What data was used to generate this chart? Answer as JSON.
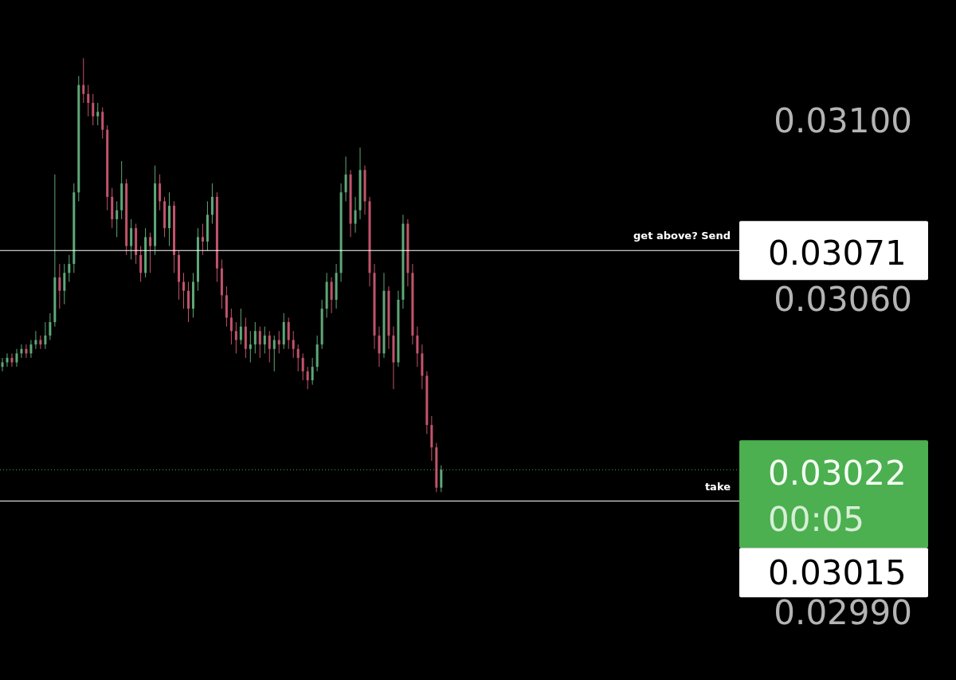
{
  "chart_data": {
    "type": "candlestick",
    "categories": [
      null,
      null,
      null,
      null,
      null,
      null,
      null,
      null,
      null,
      null,
      null,
      null,
      null,
      null,
      null,
      null,
      null,
      null,
      null,
      null,
      null,
      null,
      null,
      null,
      null,
      null,
      null,
      null,
      null,
      null,
      null,
      null,
      null,
      null,
      null,
      null,
      null,
      null,
      null,
      null,
      null,
      null,
      null,
      null,
      null,
      null,
      null,
      null,
      null,
      null,
      null,
      null,
      null,
      null,
      null,
      null,
      null,
      null,
      null,
      null,
      null,
      null,
      null,
      null,
      null,
      null,
      null,
      null,
      null,
      null,
      null,
      null,
      null,
      null,
      null,
      null,
      null,
      null,
      null,
      null,
      null,
      null,
      null,
      null,
      null,
      null,
      null,
      null,
      null,
      null,
      null,
      null,
      null,
      null,
      null,
      null,
      null,
      null,
      null,
      null,
      null,
      null,
      null,
      null,
      null,
      null,
      null,
      null,
      null,
      null,
      null,
      null,
      null,
      null,
      null,
      null,
      null,
      null,
      null,
      null,
      null,
      null,
      null,
      null,
      null,
      null,
      null,
      null,
      null,
      null,
      null,
      null,
      null,
      null,
      null,
      null,
      null,
      null,
      null,
      null,
      null,
      null,
      null,
      null,
      null,
      null,
      null,
      null,
      null,
      null,
      null,
      null,
      null,
      null,
      null
    ],
    "ohlc": [
      [
        0.03045,
        0.03047,
        0.03044,
        0.03046
      ],
      [
        0.03046,
        0.03048,
        0.03045,
        0.03047
      ],
      [
        0.03047,
        0.03048,
        0.03045,
        0.03046
      ],
      [
        0.03046,
        0.03049,
        0.03045,
        0.03048
      ],
      [
        0.03048,
        0.0305,
        0.03047,
        0.03049
      ],
      [
        0.03049,
        0.0305,
        0.03047,
        0.03048
      ],
      [
        0.03048,
        0.03051,
        0.03047,
        0.0305
      ],
      [
        0.0305,
        0.03053,
        0.03049,
        0.03051
      ],
      [
        0.03051,
        0.03052,
        0.03049,
        0.0305
      ],
      [
        0.0305,
        0.03055,
        0.03049,
        0.03052
      ],
      [
        0.03052,
        0.03057,
        0.03051,
        0.03055
      ],
      [
        0.03055,
        0.03088,
        0.03054,
        0.03065
      ],
      [
        0.03065,
        0.03068,
        0.03058,
        0.03062
      ],
      [
        0.03062,
        0.03068,
        0.03059,
        0.03066
      ],
      [
        0.03066,
        0.0307,
        0.03064,
        0.03068
      ],
      [
        0.03068,
        0.03086,
        0.03066,
        0.03084
      ],
      [
        0.03084,
        0.0311,
        0.03082,
        0.03108
      ],
      [
        0.03108,
        0.03114,
        0.03104,
        0.03106
      ],
      [
        0.03106,
        0.03108,
        0.03101,
        0.03104
      ],
      [
        0.03104,
        0.03106,
        0.03099,
        0.03101
      ],
      [
        0.03101,
        0.03104,
        0.03099,
        0.03102
      ],
      [
        0.03102,
        0.03103,
        0.03096,
        0.03098
      ],
      [
        0.03098,
        0.03099,
        0.0308,
        0.03083
      ],
      [
        0.03083,
        0.03085,
        0.03076,
        0.03078
      ],
      [
        0.03078,
        0.03082,
        0.03074,
        0.0308
      ],
      [
        0.0308,
        0.03091,
        0.03078,
        0.03086
      ],
      [
        0.03086,
        0.03087,
        0.0307,
        0.03072
      ],
      [
        0.03072,
        0.03078,
        0.03069,
        0.03076
      ],
      [
        0.03076,
        0.03077,
        0.03068,
        0.0307
      ],
      [
        0.0307,
        0.03072,
        0.03064,
        0.03066
      ],
      [
        0.03066,
        0.03076,
        0.03065,
        0.03074
      ],
      [
        0.03074,
        0.03075,
        0.03066,
        0.03072
      ],
      [
        0.03072,
        0.0309,
        0.0307,
        0.03086
      ],
      [
        0.03086,
        0.03088,
        0.0308,
        0.03082
      ],
      [
        0.03082,
        0.03083,
        0.03074,
        0.03076
      ],
      [
        0.03076,
        0.03084,
        0.03072,
        0.03081
      ],
      [
        0.03081,
        0.03082,
        0.03066,
        0.0307
      ],
      [
        0.0307,
        0.03071,
        0.0306,
        0.03064
      ],
      [
        0.03064,
        0.03066,
        0.03058,
        0.03062
      ],
      [
        0.03062,
        0.03064,
        0.03055,
        0.03058
      ],
      [
        0.03058,
        0.03066,
        0.03056,
        0.03064
      ],
      [
        0.03064,
        0.03076,
        0.03062,
        0.03074
      ],
      [
        0.03074,
        0.03077,
        0.0307,
        0.03073
      ],
      [
        0.03073,
        0.03082,
        0.03071,
        0.03079
      ],
      [
        0.03079,
        0.03086,
        0.03077,
        0.03083
      ],
      [
        0.03083,
        0.03084,
        0.03064,
        0.03067
      ],
      [
        0.03067,
        0.03069,
        0.03058,
        0.03061
      ],
      [
        0.03061,
        0.03063,
        0.03054,
        0.03056
      ],
      [
        0.03056,
        0.03058,
        0.0305,
        0.03053
      ],
      [
        0.03053,
        0.03055,
        0.03048,
        0.03051
      ],
      [
        0.03051,
        0.03058,
        0.0305,
        0.03054
      ],
      [
        0.03054,
        0.03056,
        0.03047,
        0.03049
      ],
      [
        0.03049,
        0.03053,
        0.03046,
        0.0305
      ],
      [
        0.0305,
        0.03055,
        0.03048,
        0.03053
      ],
      [
        0.03053,
        0.03054,
        0.03047,
        0.0305
      ],
      [
        0.0305,
        0.03054,
        0.03048,
        0.03052
      ],
      [
        0.03052,
        0.03053,
        0.03046,
        0.03049
      ],
      [
        0.03049,
        0.03052,
        0.03044,
        0.03051
      ],
      [
        0.03051,
        0.03053,
        0.03048,
        0.0305
      ],
      [
        0.0305,
        0.03057,
        0.03049,
        0.03055
      ],
      [
        0.03055,
        0.03056,
        0.03049,
        0.03051
      ],
      [
        0.03051,
        0.03053,
        0.03047,
        0.03049
      ],
      [
        0.03049,
        0.0305,
        0.03044,
        0.03047
      ],
      [
        0.03047,
        0.03048,
        0.03042,
        0.03044
      ],
      [
        0.03044,
        0.03045,
        0.0304,
        0.03042
      ],
      [
        0.03042,
        0.03047,
        0.03041,
        0.03045
      ],
      [
        0.03045,
        0.03052,
        0.03044,
        0.0305
      ],
      [
        0.0305,
        0.0306,
        0.03049,
        0.03058
      ],
      [
        0.03058,
        0.03066,
        0.03056,
        0.03064
      ],
      [
        0.03064,
        0.03065,
        0.03057,
        0.0306
      ],
      [
        0.0306,
        0.03068,
        0.03058,
        0.03066
      ],
      [
        0.03066,
        0.03086,
        0.03064,
        0.03084
      ],
      [
        0.03084,
        0.03092,
        0.03082,
        0.03088
      ],
      [
        0.03088,
        0.03089,
        0.03074,
        0.03077
      ],
      [
        0.03077,
        0.03083,
        0.03075,
        0.0308
      ],
      [
        0.0308,
        0.03094,
        0.03078,
        0.03089
      ],
      [
        0.03089,
        0.0309,
        0.03079,
        0.03082
      ],
      [
        0.03082,
        0.03083,
        0.03063,
        0.03066
      ],
      [
        0.03066,
        0.03068,
        0.03049,
        0.03052
      ],
      [
        0.03052,
        0.03054,
        0.03045,
        0.03048
      ],
      [
        0.03048,
        0.03066,
        0.03047,
        0.03062
      ],
      [
        0.03062,
        0.03063,
        0.03049,
        0.03052
      ],
      [
        0.03052,
        0.03054,
        0.0304,
        0.03046
      ],
      [
        0.03046,
        0.03062,
        0.03045,
        0.0306
      ],
      [
        0.0306,
        0.03079,
        0.03058,
        0.03077
      ],
      [
        0.03077,
        0.03078,
        0.03063,
        0.03066
      ],
      [
        0.03066,
        0.03068,
        0.0305,
        0.03052
      ],
      [
        0.03052,
        0.03054,
        0.03045,
        0.03048
      ],
      [
        0.03048,
        0.0305,
        0.0304,
        0.03043
      ],
      [
        0.03043,
        0.03044,
        0.0303,
        0.03032
      ],
      [
        0.03032,
        0.03034,
        0.03024,
        0.03027
      ],
      [
        0.03027,
        0.03028,
        0.03017,
        0.03018
      ],
      [
        0.03018,
        0.03023,
        0.03017,
        0.03022
      ],
      null,
      null,
      null,
      null,
      null,
      null,
      null,
      null,
      null,
      null,
      null,
      null,
      null,
      null,
      null,
      null,
      null,
      null,
      null,
      null,
      null,
      null,
      null,
      null,
      null,
      null,
      null,
      null,
      null,
      null,
      null,
      null,
      null,
      null,
      null,
      null,
      null,
      null,
      null,
      null,
      null,
      null,
      null,
      null,
      null,
      null,
      null,
      null,
      null,
      null,
      null,
      null,
      null,
      null,
      null,
      null,
      null,
      null,
      null,
      null,
      null,
      null
    ],
    "ylim": [
      0.02975,
      0.03127
    ],
    "yticks": [
      {
        "value": 0.031,
        "label": "0.03100"
      },
      {
        "value": 0.0306,
        "label": "0.03060"
      },
      {
        "value": 0.0299,
        "label": "0.02990"
      }
    ],
    "tick_labels": "y",
    "grid": false,
    "ref_lines": [
      {
        "axis": "y",
        "value": 0.03071,
        "label": "0.03071",
        "color": "#ffffff",
        "line_style": "solid"
      },
      {
        "axis": "y",
        "value": 0.03022,
        "label": "0.03022",
        "color": "#4caf50",
        "line_style": "dotted"
      },
      {
        "axis": "y",
        "value": 0.03015,
        "label": "0.03015",
        "color": "#ffffff",
        "line_style": "solid"
      }
    ],
    "annotations": [
      {
        "text": "get above? Send",
        "y": 0.03071
      },
      "00:05",
      {
        "text": "take",
        "y": 0.03015
      }
    ]
  }
}
